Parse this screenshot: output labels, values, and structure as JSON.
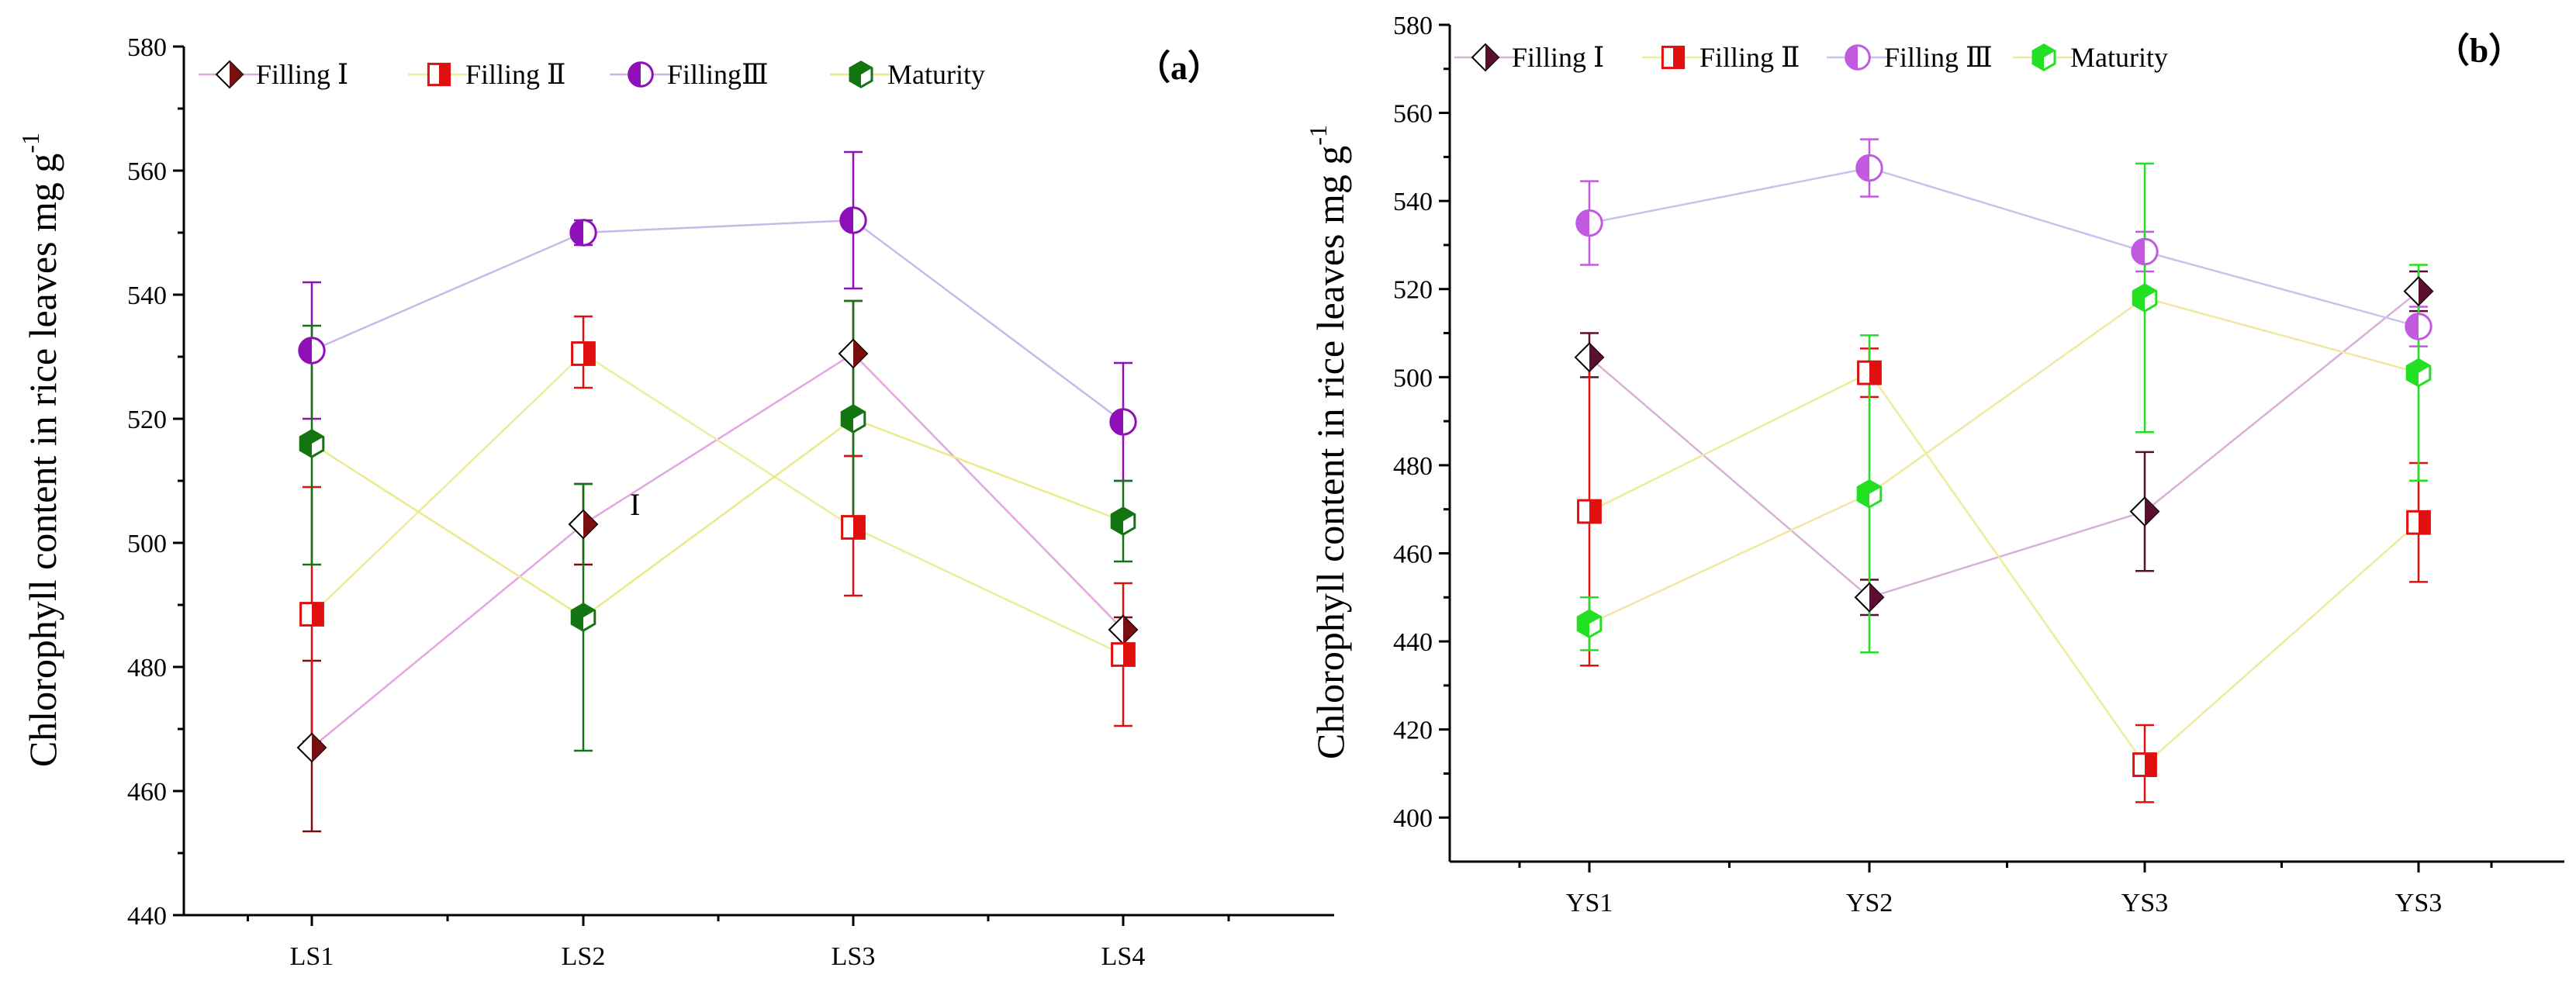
{
  "chart_data": [
    {
      "type": "line",
      "panel_label": "（a）",
      "title": "",
      "xlabel": "",
      "ylabel": "Chlorophyll content in rice leaves mg g",
      "ylabel_sup": "-1",
      "categories": [
        "LS1",
        "LS2",
        "LS3",
        "LS4"
      ],
      "ylim": [
        440,
        580
      ],
      "yticks": [
        440,
        460,
        480,
        500,
        520,
        540,
        560,
        580
      ],
      "grid": false,
      "legend_position": "top",
      "annotation": "I",
      "series": [
        {
          "name": "Filling Ⅰ",
          "marker": "diamond",
          "color": "#7a0f0f",
          "line_color": "#e2a6e2",
          "values": [
            467,
            503,
            530.5,
            486
          ],
          "err_low": [
            453.5,
            496.5,
            514,
            482
          ],
          "err_high": [
            481,
            509.5,
            539,
            488
          ]
        },
        {
          "name": "Filling Ⅱ",
          "marker": "square",
          "color": "#e01010",
          "line_color": "#ecec9a",
          "values": [
            488.5,
            530.5,
            502.5,
            482
          ],
          "err_low": [
            468,
            525,
            491.5,
            470.5
          ],
          "err_high": [
            509,
            536.5,
            514,
            493.5
          ]
        },
        {
          "name": "FillingⅢ",
          "marker": "circle",
          "color": "#8f10b8",
          "line_color": "#c9b8e8",
          "values": [
            531,
            550,
            552,
            519.5
          ],
          "err_low": [
            520,
            548,
            541,
            510
          ],
          "err_high": [
            542,
            552,
            563,
            529
          ]
        },
        {
          "name": "Maturity",
          "marker": "hexagon",
          "color": "#127512",
          "line_color": "#eaea8a",
          "values": [
            516,
            488,
            520,
            503.5
          ],
          "err_low": [
            496.5,
            466.5,
            501,
            497
          ],
          "err_high": [
            535,
            509.5,
            539,
            510
          ]
        }
      ]
    },
    {
      "type": "line",
      "panel_label": "（b）",
      "title": "",
      "xlabel": "",
      "ylabel": "Chlorophyll content in rice leaves mg g",
      "ylabel_sup": "-1",
      "categories": [
        "YS1",
        "YS2",
        "YS3",
        "YS3"
      ],
      "ylim": [
        390,
        580
      ],
      "yticks": [
        400,
        420,
        440,
        460,
        480,
        500,
        520,
        540,
        560,
        580
      ],
      "grid": false,
      "legend_position": "top",
      "series": [
        {
          "name": "Filling Ⅰ",
          "marker": "diamond",
          "color": "#5a0f30",
          "line_color": "#d8b0d8",
          "values": [
            504.5,
            450,
            469.5,
            519.5
          ],
          "err_low": [
            500,
            446,
            456,
            515
          ],
          "err_high": [
            510,
            454,
            483,
            524
          ]
        },
        {
          "name": "Filling Ⅱ",
          "marker": "square",
          "color": "#e01010",
          "line_color": "#ecec9a",
          "values": [
            469.5,
            501,
            412,
            467
          ],
          "err_low": [
            434.5,
            495.5,
            403.5,
            453.5
          ],
          "err_high": [
            504.5,
            506.5,
            421,
            480.5
          ]
        },
        {
          "name": "Filling Ⅲ",
          "marker": "circle",
          "color": "#c25ae0",
          "line_color": "#ccc0ee",
          "values": [
            535,
            547.5,
            528.5,
            511.5
          ],
          "err_low": [
            525.5,
            541,
            524,
            507
          ],
          "err_high": [
            544.5,
            554,
            533,
            516
          ]
        },
        {
          "name": "Maturity",
          "marker": "hexagon",
          "color": "#22e022",
          "line_color": "#f0e8a0",
          "values": [
            444,
            473.5,
            518,
            501
          ],
          "err_low": [
            438,
            437.5,
            487.5,
            476.5
          ],
          "err_high": [
            450,
            509.5,
            548.5,
            525.5
          ]
        }
      ]
    }
  ]
}
